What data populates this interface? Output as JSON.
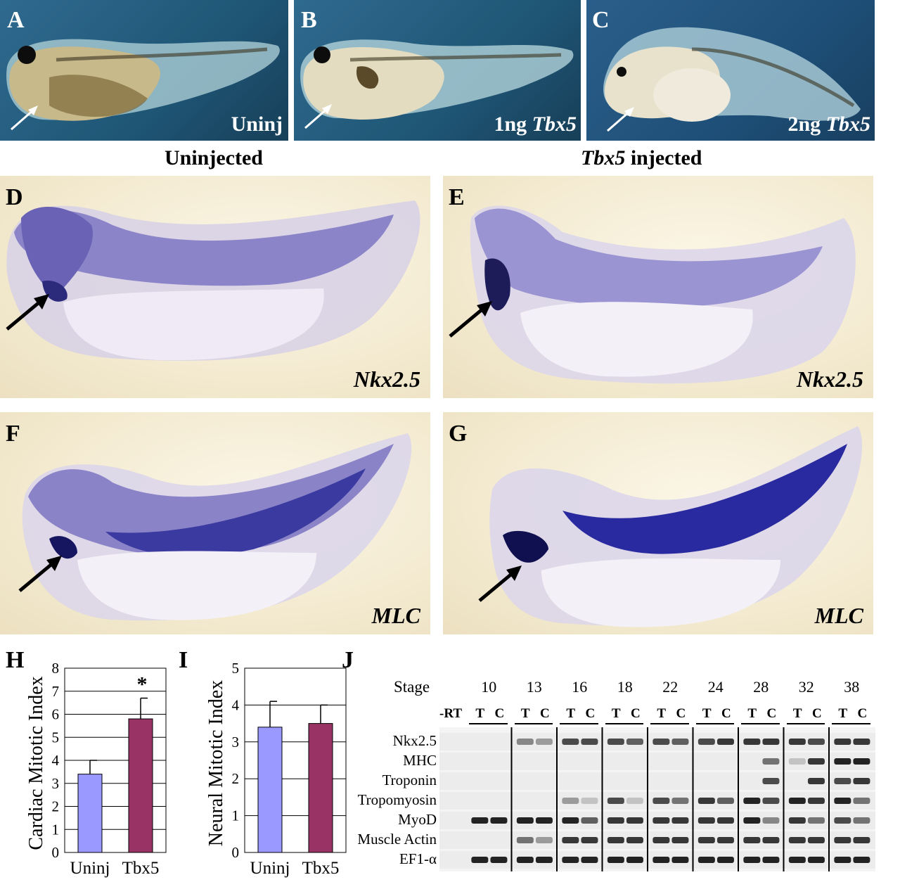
{
  "panels": {
    "A": {
      "letter": "A",
      "label": "Uninj"
    },
    "B": {
      "letter": "B",
      "label_prefix": "1ng ",
      "label_gene": "Tbx5"
    },
    "C": {
      "letter": "C",
      "label_prefix": "2ng ",
      "label_gene": "Tbx5"
    },
    "D": {
      "letter": "D",
      "gene": "Nkx2.5"
    },
    "E": {
      "letter": "E",
      "gene": "Nkx2.5"
    },
    "F": {
      "letter": "F",
      "gene": "MLC"
    },
    "G": {
      "letter": "G",
      "gene": "MLC"
    },
    "H": {
      "letter": "H"
    },
    "I": {
      "letter": "I"
    },
    "J": {
      "letter": "J"
    }
  },
  "headings": {
    "uninjected": "Uninjected",
    "injected_gene": "Tbx5",
    "injected_suffix": " injected"
  },
  "colors": {
    "uninj_bar": "#9999ff",
    "tbx5_bar": "#993366"
  },
  "chart_data": [
    {
      "type": "bar",
      "panel": "H",
      "categories": [
        "Uninj",
        "Tbx5"
      ],
      "values": [
        3.4,
        5.8
      ],
      "errors": [
        0.6,
        0.9
      ],
      "ylabel": "Cardiac Mitotic Index",
      "ylim": [
        0,
        8
      ],
      "yticks": [
        "0",
        "1",
        "2",
        "3",
        "4",
        "5",
        "6",
        "7",
        "8"
      ],
      "annotation": "*",
      "grid": true
    },
    {
      "type": "bar",
      "panel": "I",
      "categories": [
        "Uninj",
        "Tbx5"
      ],
      "values": [
        3.4,
        3.5
      ],
      "errors": [
        0.7,
        0.5
      ],
      "ylabel": "Neural Mitotic Index",
      "ylim": [
        0,
        5
      ],
      "yticks": [
        "0",
        "1",
        "2",
        "3",
        "4",
        "5"
      ],
      "grid": true
    }
  ],
  "gel": {
    "stage_label": "Stage",
    "stages": [
      "10",
      "13",
      "16",
      "18",
      "22",
      "24",
      "28",
      "32",
      "38"
    ],
    "neg_control": "-RT",
    "lane_t": "T",
    "lane_c": "C",
    "genes": [
      "Nkx2.5",
      "MHC",
      "Troponin",
      "Tropomyosin",
      "MyoD",
      "Muscle Actin",
      "EF1-α"
    ]
  }
}
